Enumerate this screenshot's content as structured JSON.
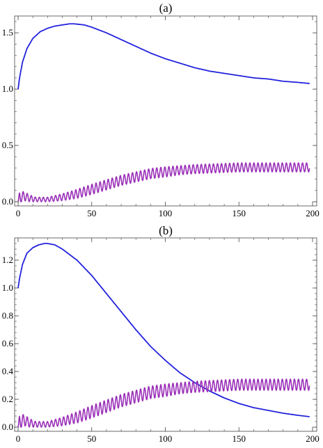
{
  "chart_data": [
    {
      "type": "line",
      "title": "(a)",
      "xlabel": "",
      "ylabel": "",
      "xlim": [
        0,
        200
      ],
      "ylim": [
        0,
        1.6
      ],
      "x_ticks": [
        0,
        50,
        100,
        150,
        200
      ],
      "y_ticks": [
        0.0,
        0.5,
        1.0,
        1.5
      ],
      "grid": false,
      "legend": "none",
      "series": [
        {
          "color": "#2222dd",
          "x": [
            0,
            1,
            3,
            6,
            10,
            15,
            20,
            25,
            30,
            35,
            38,
            45,
            50,
            60,
            70,
            80,
            90,
            100,
            110,
            120,
            130,
            140,
            150,
            160,
            170,
            180,
            190,
            198
          ],
          "y": [
            1.0,
            1.1,
            1.24,
            1.36,
            1.45,
            1.51,
            1.54,
            1.56,
            1.57,
            1.58,
            1.58,
            1.57,
            1.55,
            1.5,
            1.44,
            1.38,
            1.32,
            1.27,
            1.23,
            1.19,
            1.16,
            1.14,
            1.12,
            1.1,
            1.09,
            1.07,
            1.06,
            1.05
          ]
        },
        {
          "color": "#9a2fb8",
          "style": "oscillating",
          "period": 2.75,
          "x": [
            0,
            1,
            4,
            8,
            12,
            15,
            20,
            30,
            40,
            50,
            60,
            70,
            80,
            90,
            100,
            110,
            120,
            130,
            140,
            150,
            160,
            170,
            180,
            190,
            198
          ],
          "mean": [
            0.0,
            0.04,
            0.05,
            0.03,
            0.02,
            0.02,
            0.02,
            0.04,
            0.07,
            0.11,
            0.15,
            0.19,
            0.22,
            0.25,
            0.265,
            0.28,
            0.29,
            0.295,
            0.3,
            0.305,
            0.305,
            0.305,
            0.305,
            0.305,
            0.305
          ],
          "amplitude": [
            0.0,
            0.05,
            0.04,
            0.03,
            0.02,
            0.02,
            0.02,
            0.03,
            0.04,
            0.045,
            0.045,
            0.045,
            0.045,
            0.045,
            0.045,
            0.04,
            0.04,
            0.04,
            0.04,
            0.04,
            0.04,
            0.04,
            0.04,
            0.04,
            0.04
          ]
        }
      ]
    },
    {
      "type": "line",
      "title": "(b)",
      "xlabel": "",
      "ylabel": "",
      "xlim": [
        0,
        200
      ],
      "ylim": [
        0,
        1.32
      ],
      "x_ticks": [
        0,
        50,
        100,
        150,
        200
      ],
      "y_ticks": [
        0.0,
        0.2,
        0.4,
        0.6,
        0.8,
        1.0,
        1.2
      ],
      "grid": false,
      "legend": "none",
      "series": [
        {
          "color": "#2222dd",
          "x": [
            0,
            1,
            3,
            6,
            10,
            14,
            18,
            20,
            25,
            30,
            40,
            50,
            60,
            70,
            80,
            90,
            100,
            110,
            120,
            130,
            140,
            150,
            160,
            170,
            180,
            190,
            198
          ],
          "y": [
            1.0,
            1.07,
            1.17,
            1.25,
            1.29,
            1.31,
            1.32,
            1.32,
            1.31,
            1.28,
            1.2,
            1.09,
            0.96,
            0.83,
            0.7,
            0.58,
            0.48,
            0.39,
            0.32,
            0.26,
            0.21,
            0.17,
            0.14,
            0.12,
            0.1,
            0.085,
            0.075
          ]
        },
        {
          "color": "#9a2fb8",
          "style": "oscillating",
          "period": 2.75,
          "x": [
            0,
            1,
            4,
            8,
            12,
            15,
            20,
            30,
            40,
            50,
            60,
            70,
            80,
            90,
            100,
            110,
            120,
            130,
            140,
            150,
            160,
            170,
            180,
            190,
            198
          ],
          "mean": [
            0.0,
            0.04,
            0.05,
            0.03,
            0.02,
            0.02,
            0.02,
            0.04,
            0.07,
            0.11,
            0.15,
            0.19,
            0.22,
            0.25,
            0.265,
            0.28,
            0.29,
            0.295,
            0.3,
            0.305,
            0.305,
            0.305,
            0.305,
            0.305,
            0.305
          ],
          "amplitude": [
            0.0,
            0.05,
            0.04,
            0.03,
            0.02,
            0.02,
            0.02,
            0.03,
            0.04,
            0.045,
            0.045,
            0.045,
            0.045,
            0.045,
            0.045,
            0.04,
            0.04,
            0.04,
            0.04,
            0.04,
            0.04,
            0.04,
            0.04,
            0.04,
            0.04
          ]
        }
      ]
    }
  ]
}
